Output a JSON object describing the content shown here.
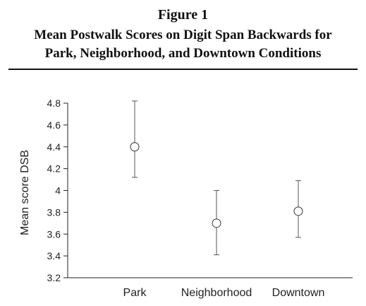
{
  "header": {
    "figure_label": "Figure 1",
    "title_line1": "Mean Postwalk Scores on Digit Span Backwards for",
    "title_line2": "Park, Neighborhood, and Downtown Conditions"
  },
  "chart_data": {
    "type": "scatter",
    "title": "Mean Postwalk Scores on Digit Span Backwards for Park, Neighborhood, and Downtown Conditions",
    "xlabel": "",
    "ylabel": "Mean score DSB",
    "categories": [
      "Park",
      "Neighborhood",
      "Downtown"
    ],
    "values": [
      4.4,
      3.7,
      3.81
    ],
    "error_low": [
      4.12,
      3.41,
      3.57
    ],
    "error_high": [
      4.82,
      4.0,
      4.09
    ],
    "ylim": [
      3.2,
      4.8
    ],
    "yticks": [
      3.2,
      3.4,
      3.6,
      3.8,
      4,
      4.2,
      4.4,
      4.6,
      4.8
    ],
    "ytick_labels": [
      "3.2",
      "3.4",
      "3.6",
      "3.8",
      "4",
      "4.2",
      "4.4",
      "4.6",
      "4.8"
    ],
    "grid": false,
    "marker": "open-circle",
    "colors": {
      "axis": "#222222",
      "marker_stroke": "#333333",
      "marker_fill": "#ffffff",
      "error_bar": "#555555"
    }
  }
}
